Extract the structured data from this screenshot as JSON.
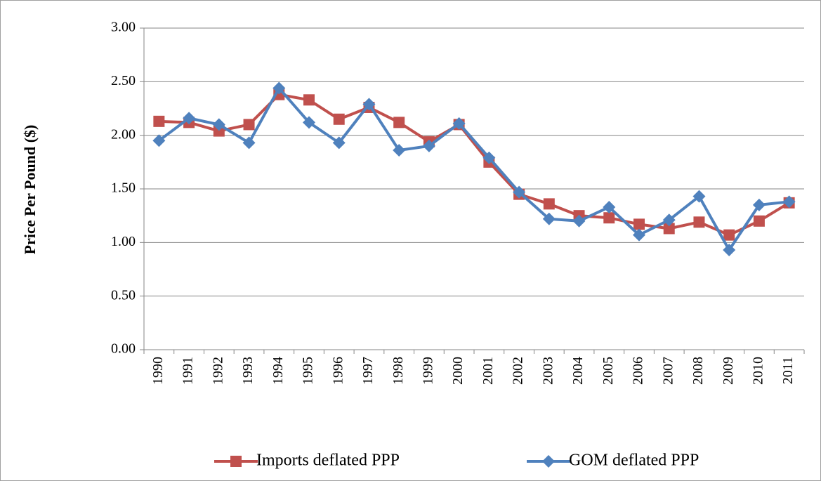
{
  "chart_data": {
    "type": "line",
    "y_label": "Price Per Pound ($)",
    "categories": [
      "1990",
      "1991",
      "1992",
      "1993",
      "1994",
      "1995",
      "1996",
      "1997",
      "1998",
      "1999",
      "2000",
      "2001",
      "2002",
      "2003",
      "2004",
      "2005",
      "2006",
      "2007",
      "2008",
      "2009",
      "2010",
      "2011"
    ],
    "series": [
      {
        "name": "Imports deflated PPP",
        "color": "#c0504d",
        "marker": "square",
        "values": [
          2.13,
          2.12,
          2.04,
          2.1,
          2.38,
          2.33,
          2.15,
          2.26,
          2.12,
          1.94,
          2.1,
          1.75,
          1.45,
          1.36,
          1.25,
          1.23,
          1.17,
          1.13,
          1.19,
          1.07,
          1.2,
          1.37
        ]
      },
      {
        "name": "GOM deflated PPP",
        "color": "#4f81bd",
        "marker": "diamond",
        "values": [
          1.95,
          2.16,
          2.1,
          1.93,
          2.44,
          2.12,
          1.93,
          2.29,
          1.86,
          1.9,
          2.11,
          1.79,
          1.47,
          1.22,
          1.2,
          1.33,
          1.07,
          1.21,
          1.43,
          0.93,
          1.35,
          1.38
        ]
      }
    ],
    "ylim": [
      0,
      3
    ],
    "yticks": [
      {
        "value": 0,
        "label": "0.00"
      },
      {
        "value": 0.5,
        "label": "0.50"
      },
      {
        "value": 1,
        "label": "1.00"
      },
      {
        "value": 1.5,
        "label": "1.50"
      },
      {
        "value": 2,
        "label": "2.00"
      },
      {
        "value": 2.5,
        "label": "2.50"
      },
      {
        "value": 3,
        "label": "3.00"
      }
    ],
    "grid": true,
    "legend": "bottom"
  }
}
